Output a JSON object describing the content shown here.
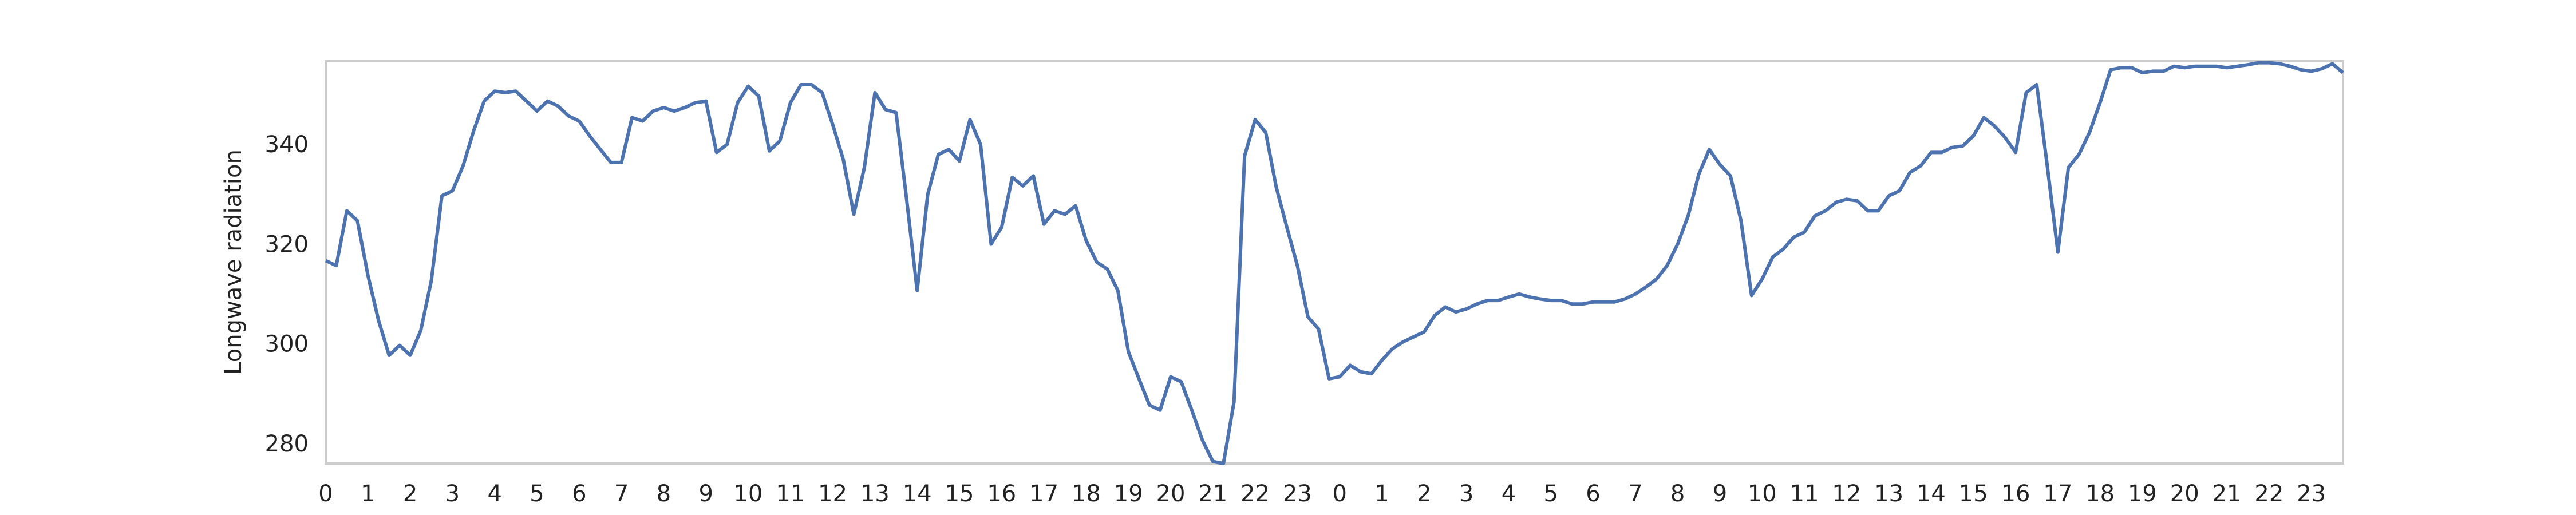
{
  "chart_data": {
    "type": "line",
    "ylabel": "Longwave radiation",
    "x": [
      0,
      0.25,
      0.5,
      0.75,
      1,
      1.25,
      1.5,
      1.75,
      2,
      2.25,
      2.5,
      2.75,
      3,
      3.25,
      3.5,
      3.75,
      4,
      4.25,
      4.5,
      4.75,
      5,
      5.25,
      5.5,
      5.75,
      6,
      6.25,
      6.5,
      6.75,
      7,
      7.25,
      7.5,
      7.75,
      8,
      8.25,
      8.5,
      8.75,
      9,
      9.25,
      9.5,
      9.75,
      10,
      10.25,
      10.5,
      10.75,
      11,
      11.25,
      11.5,
      11.75,
      12,
      12.25,
      12.5,
      12.75,
      13,
      13.25,
      13.5,
      13.75,
      14,
      14.25,
      14.5,
      14.75,
      15,
      15.25,
      15.5,
      15.75,
      16,
      16.25,
      16.5,
      16.75,
      17,
      17.25,
      17.5,
      17.75,
      18,
      18.25,
      18.5,
      18.75,
      19,
      19.25,
      19.5,
      19.75,
      20,
      20.25,
      20.5,
      20.75,
      21,
      21.25,
      21.5,
      21.75,
      22,
      22.25,
      22.5,
      22.75,
      23,
      23.25,
      23.5,
      23.75,
      24,
      24.25,
      24.5,
      24.75,
      25,
      25.25,
      25.5,
      25.75,
      26,
      26.25,
      26.5,
      26.75,
      27,
      27.25,
      27.5,
      27.75,
      28,
      28.25,
      28.5,
      28.75,
      29,
      29.25,
      29.5,
      29.75,
      30,
      30.25,
      30.5,
      30.75,
      31,
      31.25,
      31.5,
      31.75,
      32,
      32.25,
      32.5,
      32.75,
      33,
      33.25,
      33.5,
      33.75,
      34,
      34.25,
      34.5,
      34.75,
      35,
      35.25,
      35.5,
      35.75,
      36,
      36.25,
      36.5,
      36.75,
      37,
      37.25,
      37.5,
      37.75,
      38,
      38.25,
      38.5,
      38.75,
      39,
      39.25,
      39.5,
      39.75,
      40,
      40.25,
      40.5,
      40.75,
      41,
      41.25,
      41.5,
      41.75,
      42,
      42.25,
      42.5,
      42.75,
      43,
      43.25,
      43.5,
      43.75,
      44,
      44.25,
      44.5,
      44.75,
      45,
      45.25,
      45.5,
      45.75,
      46,
      46.25,
      46.5,
      46.75,
      47,
      47.25,
      47.5,
      47.75
    ],
    "values": [
      317,
      316,
      327,
      325,
      314,
      305,
      298,
      300,
      298,
      303,
      313,
      330,
      331,
      336,
      343,
      349,
      351,
      350.7,
      351,
      349,
      347,
      349,
      348,
      346,
      345,
      342,
      339.3,
      336.7,
      336.7,
      345.7,
      345,
      347,
      347.7,
      347,
      347.7,
      348.7,
      349,
      338.7,
      340.3,
      348.7,
      352,
      350,
      339,
      341,
      348.7,
      352.3,
      352.3,
      350.7,
      344.3,
      337.3,
      326.3,
      335.7,
      350.7,
      347.3,
      346.7,
      329.3,
      311,
      330.3,
      338.3,
      339.3,
      337,
      345.3,
      340.3,
      320.3,
      323.7,
      333.7,
      332,
      334,
      324.3,
      327,
      326.3,
      328,
      321,
      316.7,
      315.3,
      311,
      298.7,
      293.3,
      288,
      287,
      293.7,
      292.7,
      287,
      281,
      276.7,
      276.3,
      288.7,
      338,
      345.3,
      342.7,
      331.7,
      323.7,
      316,
      305.7,
      303.3,
      293.3,
      293.7,
      296,
      294.7,
      294.3,
      297,
      299.3,
      300.7,
      301.7,
      302.7,
      306,
      307.7,
      306.7,
      307.3,
      308.3,
      309,
      309,
      309.7,
      310.3,
      309.7,
      309.3,
      309,
      309,
      308.3,
      308.3,
      308.7,
      308.7,
      308.7,
      309.3,
      310.3,
      311.7,
      313.3,
      316,
      320.3,
      326,
      334.3,
      339.3,
      336.3,
      334,
      325,
      310,
      313.3,
      317.7,
      319.3,
      321.7,
      322.7,
      326,
      327,
      328.7,
      329.3,
      329,
      327,
      327,
      330,
      331,
      334.7,
      336,
      338.7,
      338.7,
      339.7,
      340,
      342,
      345.7,
      344,
      341.7,
      338.7,
      350.7,
      352.3,
      336,
      318.7,
      335.7,
      338.3,
      342.7,
      348.7,
      355.3,
      355.7,
      355.7,
      354.7,
      355,
      355,
      356,
      355.7,
      356,
      356,
      356,
      355.7,
      356,
      356.3,
      356.7,
      356.7,
      356.5,
      356,
      355.3,
      355,
      355.5,
      356.5,
      354.7
    ],
    "color": "#4c72b0",
    "xlim": [
      0,
      47.75
    ],
    "ylim": [
      276.3,
      357
    ],
    "yticks": [
      280,
      300,
      320,
      340
    ],
    "xticks": [
      0,
      1,
      2,
      3,
      4,
      5,
      6,
      7,
      8,
      9,
      10,
      11,
      12,
      13,
      14,
      15,
      16,
      17,
      18,
      19,
      20,
      21,
      22,
      23,
      {
        "value": 24,
        "label": "0"
      },
      {
        "value": 25,
        "label": "1"
      },
      {
        "value": 26,
        "label": "2"
      },
      {
        "value": 27,
        "label": "3"
      },
      {
        "value": 28,
        "label": "4"
      },
      {
        "value": 29,
        "label": "5"
      },
      {
        "value": 30,
        "label": "6"
      },
      {
        "value": 31,
        "label": "7"
      },
      {
        "value": 32,
        "label": "8"
      },
      {
        "value": 33,
        "label": "9"
      },
      {
        "value": 34,
        "label": "10"
      },
      {
        "value": 35,
        "label": "11"
      },
      {
        "value": 36,
        "label": "12"
      },
      {
        "value": 37,
        "label": "13"
      },
      {
        "value": 38,
        "label": "14"
      },
      {
        "value": 39,
        "label": "15"
      },
      {
        "value": 40,
        "label": "16"
      },
      {
        "value": 41,
        "label": "17"
      },
      {
        "value": 42,
        "label": "18"
      },
      {
        "value": 43,
        "label": "19"
      },
      {
        "value": 44,
        "label": "20"
      },
      {
        "value": 45,
        "label": "21"
      },
      {
        "value": 46,
        "label": "22"
      },
      {
        "value": 47,
        "label": "23"
      }
    ],
    "grid": false
  }
}
